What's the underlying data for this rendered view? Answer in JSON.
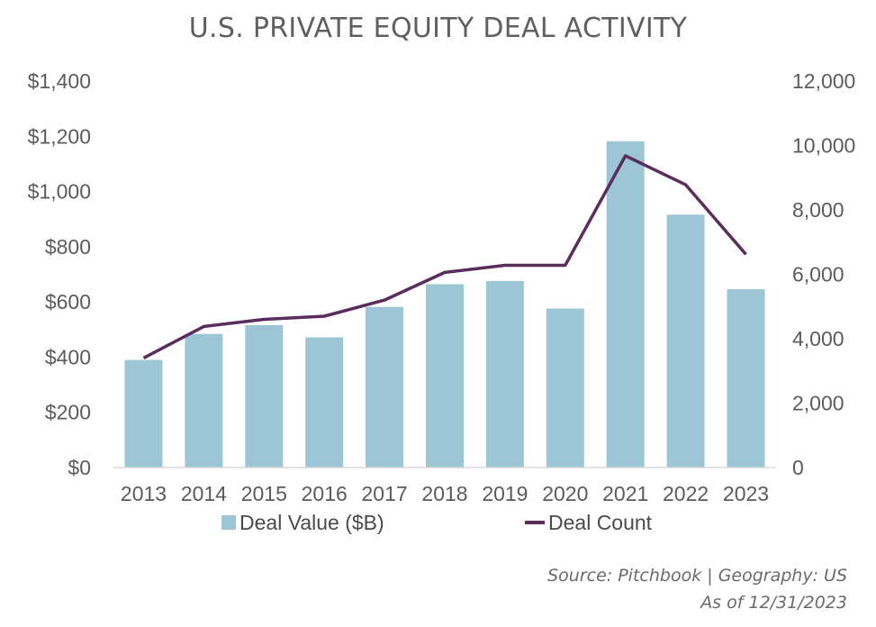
{
  "chart_data": {
    "type": "bar",
    "title": "U.S. PRIVATE EQUITY DEAL ACTIVITY",
    "categories": [
      "2013",
      "2014",
      "2015",
      "2016",
      "2017",
      "2018",
      "2019",
      "2020",
      "2021",
      "2022",
      "2023"
    ],
    "series": [
      {
        "name": "Deal Value ($B)",
        "type": "bar",
        "axis": "left",
        "color": "#9cc6d5",
        "values": [
          390,
          484,
          516,
          472,
          582,
          664,
          676,
          576,
          1182,
          916,
          646
        ]
      },
      {
        "name": "Deal Count",
        "type": "line",
        "axis": "right",
        "color": "#5a2d5c",
        "values": [
          3400,
          4380,
          4600,
          4700,
          5200,
          6060,
          6280,
          6280,
          9680,
          8780,
          6620
        ]
      }
    ],
    "y_left": {
      "ylim": [
        0,
        1400
      ],
      "ticks": [
        0,
        200,
        400,
        600,
        800,
        1000,
        1200,
        1400
      ],
      "tick_labels": [
        "$0",
        "$200",
        "$400",
        "$600",
        "$800",
        "$1,000",
        "$1,200",
        "$1,400"
      ]
    },
    "y_right": {
      "ylim": [
        0,
        12000
      ],
      "ticks": [
        0,
        2000,
        4000,
        6000,
        8000,
        10000,
        12000
      ],
      "tick_labels": [
        "0",
        "2,000",
        "4,000",
        "6,000",
        "8,000",
        "10,000",
        "12,000"
      ]
    },
    "xlabel": "",
    "ylabel": "",
    "grid": false,
    "legend": {
      "placement": "bottom",
      "entries": [
        "Deal Value ($B)",
        "Deal Count"
      ]
    }
  },
  "footer": {
    "source_line": "Source: Pitchbook | Geography: US",
    "as_of_line": "As of 12/31/2023"
  }
}
